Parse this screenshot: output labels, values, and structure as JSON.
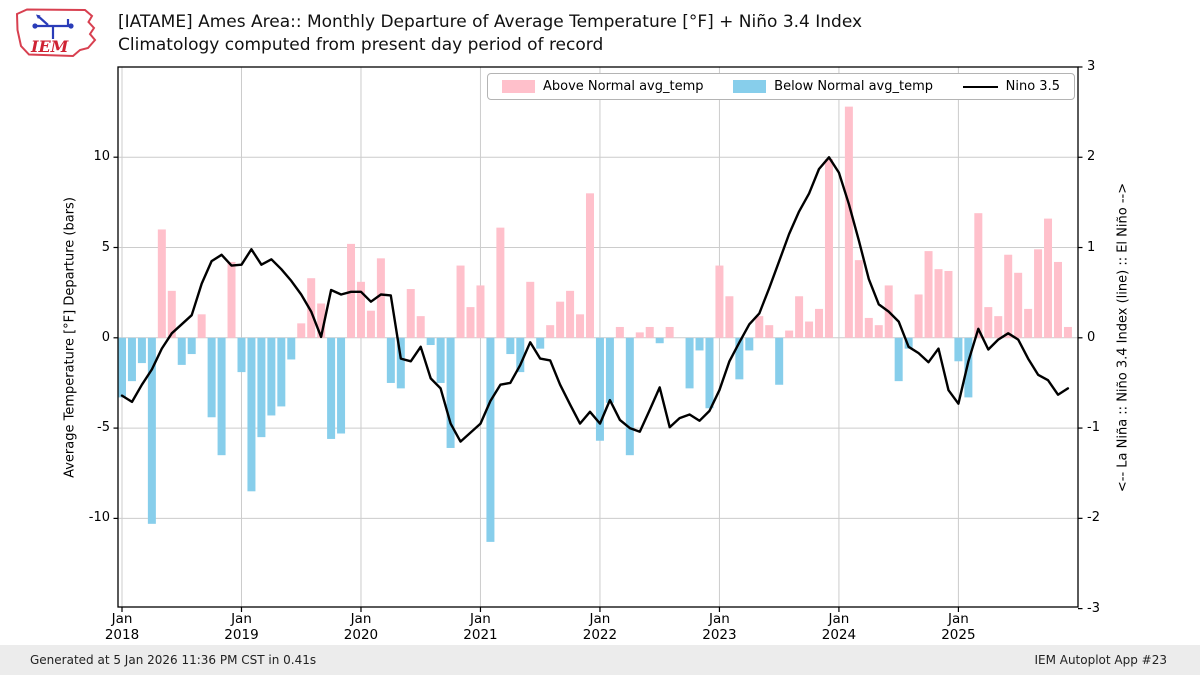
{
  "header": {
    "title_line1": "[IATAME] Ames Area:: Monthly Departure of Average Temperature [°F] + Niño 3.4 Index",
    "title_line2": "Climatology computed from present day period of record",
    "logo_text": "IEM"
  },
  "legend": {
    "items": [
      {
        "label": "Above Normal avg_temp",
        "swatch_color": "#ffc0cb",
        "type": "patch"
      },
      {
        "label": "Below Normal avg_temp",
        "swatch_color": "#87ceeb",
        "type": "patch"
      },
      {
        "label": "Nino 3.5",
        "swatch_color": "#000000",
        "type": "line"
      }
    ]
  },
  "axes": {
    "left_label": "Average Temperature [°F] Departure (bars)",
    "right_label": "<-- La Niña :: Niño 3.4 Index (line) :: El Niño -->",
    "left_ticks": [
      10,
      5,
      0,
      -5,
      -10
    ],
    "right_ticks": [
      3,
      2,
      1,
      0,
      -1,
      -2,
      -3
    ],
    "left_range": [
      -15,
      15
    ],
    "right_range": [
      -3,
      3
    ]
  },
  "footer": {
    "left": "Generated at 5 Jan 2026 11:36 PM CST in 0.41s",
    "right": "IEM Autoplot App #23"
  },
  "chart_data": {
    "type": "bar+line",
    "title": "[IATAME] Ames Area:: Monthly Departure of Average Temperature [°F] + Niño 3.4 Index",
    "subtitle": "Climatology computed from present day period of record",
    "grid": true,
    "legend_position": "top",
    "x_ticks": [
      {
        "month": "Jan",
        "year": "2018"
      },
      {
        "month": "Jan",
        "year": "2019"
      },
      {
        "month": "Jan",
        "year": "2020"
      },
      {
        "month": "Jan",
        "year": "2021"
      },
      {
        "month": "Jan",
        "year": "2022"
      },
      {
        "month": "Jan",
        "year": "2023"
      },
      {
        "month": "Jan",
        "year": "2024"
      },
      {
        "month": "Jan",
        "year": "2025"
      }
    ],
    "months_start": "2018-01",
    "months_end": "2025-12",
    "bar_series_name": "Monthly Departure of Average Temperature [°F]",
    "line_series_name": "Nino 3.5",
    "bar_colors": {
      "above_normal": "#ffc0cb",
      "below_normal": "#87ceeb"
    },
    "line_color": "#000000",
    "temp_departure_f": {
      "2018": [
        -3.3,
        -2.4,
        -1.4,
        -10.3,
        6.0,
        2.6,
        -1.5,
        -0.9,
        1.3,
        -4.4,
        -6.5,
        4.2
      ],
      "2019": [
        -1.9,
        -8.5,
        -5.5,
        -4.3,
        -3.8,
        -1.2,
        0.8,
        3.3,
        1.9,
        -5.6,
        -5.3,
        5.2
      ],
      "2020": [
        3.1,
        1.5,
        4.4,
        -2.5,
        -2.8,
        2.7,
        1.2,
        -0.4,
        -2.5,
        -6.1,
        4.0,
        1.7
      ],
      "2021": [
        2.9,
        -11.3,
        6.1,
        -0.9,
        -1.9,
        3.1,
        -0.6,
        0.7,
        2.0,
        2.6,
        1.3,
        8.0
      ],
      "2022": [
        -5.7,
        -3.6,
        0.6,
        -6.5,
        0.3,
        0.6,
        -0.3,
        0.6,
        0.0,
        -2.8,
        -0.7,
        -3.9
      ],
      "2023": [
        4.0,
        2.3,
        -2.3,
        -0.7,
        1.2,
        0.7,
        -2.6,
        0.4,
        2.3,
        0.9,
        1.6,
        9.9
      ],
      "2024": [
        0.0,
        12.8,
        4.3,
        1.1,
        0.7,
        2.9,
        -2.4,
        -0.6,
        2.4,
        4.8,
        3.8,
        3.7
      ],
      "2025": [
        -1.3,
        -3.3,
        6.9,
        1.7,
        1.2,
        4.6,
        3.6,
        1.6,
        4.9,
        6.6,
        4.2,
        0.6
      ]
    },
    "nino34_index": {
      "2018": [
        -0.64,
        -0.71,
        -0.52,
        -0.35,
        -0.12,
        0.05,
        0.15,
        0.25,
        0.6,
        0.85,
        0.92,
        0.8
      ],
      "2019": [
        0.81,
        0.98,
        0.81,
        0.87,
        0.76,
        0.63,
        0.48,
        0.29,
        0.01,
        0.53,
        0.48,
        0.51
      ],
      "2020": [
        0.51,
        0.4,
        0.48,
        0.47,
        -0.23,
        -0.26,
        -0.1,
        -0.45,
        -0.56,
        -0.95,
        -1.15,
        -1.05
      ],
      "2021": [
        -0.95,
        -0.7,
        -0.52,
        -0.5,
        -0.3,
        -0.05,
        -0.23,
        -0.25,
        -0.52,
        -0.74,
        -0.95,
        -0.82
      ],
      "2022": [
        -0.95,
        -0.69,
        -0.91,
        -1.0,
        -1.04,
        -0.8,
        -0.55,
        -0.99,
        -0.89,
        -0.85,
        -0.92,
        -0.81
      ],
      "2023": [
        -0.58,
        -0.26,
        -0.05,
        0.15,
        0.27,
        0.55,
        0.85,
        1.15,
        1.4,
        1.6,
        1.87,
        2.0
      ],
      "2024": [
        1.83,
        1.48,
        1.08,
        0.65,
        0.37,
        0.29,
        0.18,
        -0.1,
        -0.17,
        -0.27,
        -0.12,
        -0.58
      ],
      "2025": [
        -0.73,
        -0.26,
        0.1,
        -0.13,
        -0.02,
        0.05,
        -0.02,
        -0.23,
        -0.41,
        -0.47,
        -0.63,
        -0.56
      ]
    }
  }
}
